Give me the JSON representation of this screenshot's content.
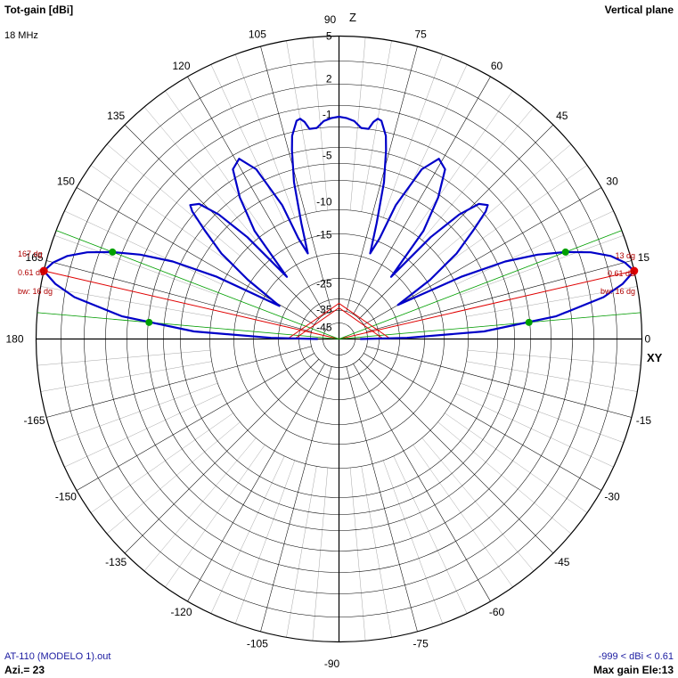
{
  "header": {
    "title": "Tot-gain [dBi]",
    "frequency": "18 MHz",
    "plane": "Vertical plane"
  },
  "footer": {
    "file": "AT-110 (MODELO 1).out",
    "azimuth": "Azi.= 23",
    "range": "-999 < dBi < 0.61",
    "max_gain": "Max gain Ele:13"
  },
  "axes": {
    "z_label": "Z",
    "xy_label": "XY"
  },
  "colors": {
    "pattern": "#0000c8",
    "beam_marker": "#e00000",
    "half_power": "#00a000",
    "grid": "#000000"
  },
  "chart_data": {
    "type": "polar",
    "angle_unit": "degrees elevation",
    "angle_ticks": [
      0,
      15,
      30,
      45,
      60,
      75,
      90,
      105,
      120,
      135,
      150,
      165,
      180,
      -165,
      -150,
      -135,
      -120,
      -105,
      -90,
      -75,
      -60,
      -45,
      -30,
      -15
    ],
    "radial_tick_labels": [
      5,
      2,
      -1,
      -5,
      -10,
      -15,
      -25,
      -35,
      -45
    ],
    "max_gain_dBi": 0.61,
    "beam_annotations": [
      {
        "side": "right",
        "angle_label": "13 dg",
        "gain_label": "0.61 dB",
        "bw_label": "bw: 16 dg",
        "elevation": 13,
        "beamwidth": 16,
        "half_power_angles": [
          5,
          21
        ]
      },
      {
        "side": "left",
        "angle_label": "167 dg",
        "gain_label": "0.61 dB",
        "bw_label": "bw: 16 dg",
        "elevation": 167,
        "beamwidth": 16,
        "half_power_angles": [
          159,
          175
        ]
      }
    ],
    "series": [
      {
        "elevation": [
          0,
          1,
          3,
          6,
          9,
          11,
          13,
          15,
          17,
          19,
          21,
          23,
          25,
          27,
          30,
          33,
          36,
          39,
          41,
          42,
          44,
          46,
          48,
          50,
          52,
          55,
          58,
          61,
          64,
          67,
          68,
          70,
          72,
          74,
          76,
          77,
          79,
          80,
          81,
          82,
          84,
          86,
          88,
          90,
          92,
          94,
          96,
          98,
          99,
          100,
          101,
          103,
          104,
          106,
          108,
          110,
          112,
          113,
          116,
          119,
          122,
          125,
          128,
          130,
          132,
          134,
          136,
          138,
          139,
          141,
          144,
          147,
          151,
          153,
          155,
          157,
          159,
          161,
          163,
          165,
          167,
          169,
          171,
          174,
          177,
          179,
          180
        ],
        "gain_dBi": [
          -45,
          -25,
          -12,
          -5,
          -1.5,
          -0.2,
          0.61,
          0.2,
          -0.5,
          -1.6,
          -3.2,
          -5.2,
          -8,
          -13,
          -25,
          -17,
          -12,
          -9,
          -7,
          -6.5,
          -7,
          -9,
          -13,
          -22,
          -13,
          -9,
          -6.5,
          -6,
          -7.5,
          -12,
          -17,
          -20,
          -15,
          -10,
          -7,
          -5.8,
          -4.7,
          -4.6,
          -4.9,
          -5.5,
          -5.5,
          -5,
          -4.8,
          -4.7,
          -4.8,
          -5,
          -5.5,
          -5.5,
          -4.9,
          -4.6,
          -4.7,
          -5.8,
          -7,
          -10,
          -15,
          -20,
          -17,
          -12,
          -7.5,
          -6,
          -6.5,
          -9,
          -13,
          -22,
          -13,
          -9,
          -7,
          -6.5,
          -7,
          -9,
          -12,
          -17,
          -25,
          -13,
          -8,
          -5.2,
          -3.2,
          -1.6,
          -0.5,
          0.2,
          0.61,
          -0.2,
          -1.5,
          -5,
          -12,
          -25,
          -45
        ]
      }
    ]
  }
}
